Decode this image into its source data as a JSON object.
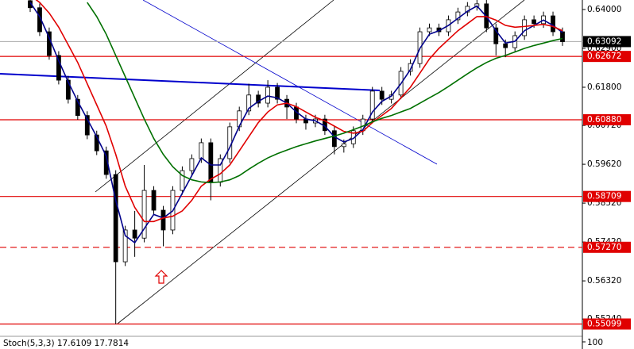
{
  "chart_data": {
    "type": "candlestick",
    "ylim": [
      0.54796,
      0.64269
    ],
    "yticks": [
      {
        "value": 0.64,
        "label": "0.64000"
      },
      {
        "value": 0.629,
        "label": "0.62900"
      },
      {
        "value": 0.618,
        "label": "0.61800"
      },
      {
        "value": 0.6072,
        "label": "0.60720"
      },
      {
        "value": 0.5962,
        "label": "0.59620"
      },
      {
        "value": 0.5852,
        "label": "0.58520"
      },
      {
        "value": 0.5742,
        "label": "0.57420"
      },
      {
        "value": 0.5632,
        "label": "0.56320"
      },
      {
        "value": 0.5524,
        "label": "0.55240"
      }
    ],
    "up_color": "#ffffff",
    "down_color": "#000000",
    "open": [
      0.6425,
      0.6405,
      0.6337,
      0.627,
      0.62,
      0.6146,
      0.61,
      0.6045,
      0.6,
      0.5933,
      0.5686,
      0.5776,
      0.5753,
      0.5888,
      0.5832,
      0.5776,
      0.5888,
      0.5944,
      0.5978,
      0.6023,
      0.5911,
      0.5978,
      0.6068,
      0.6113,
      0.6158,
      0.6135,
      0.618,
      0.6146,
      0.6124,
      0.609,
      0.6079,
      0.609,
      0.6057,
      0.6012,
      0.602,
      0.6057,
      0.609,
      0.6169,
      0.6146,
      0.6158,
      0.6225,
      0.6247,
      0.6337,
      0.6348,
      0.6337,
      0.6371,
      0.6393,
      0.6409,
      0.6416,
      0.6348,
      0.6303,
      0.6292,
      0.6326,
      0.6371,
      0.636,
      0.6382,
      0.6337
    ],
    "high": [
      0.6437,
      0.6417,
      0.6349,
      0.6282,
      0.6212,
      0.6158,
      0.6112,
      0.6057,
      0.6012,
      0.5945,
      0.5788,
      0.583,
      0.596,
      0.59,
      0.5844,
      0.59,
      0.5956,
      0.599,
      0.6035,
      0.6035,
      0.599,
      0.608,
      0.6125,
      0.619,
      0.617,
      0.62,
      0.6192,
      0.6158,
      0.6136,
      0.6102,
      0.6102,
      0.6102,
      0.6069,
      0.6032,
      0.6069,
      0.6102,
      0.6181,
      0.6181,
      0.617,
      0.6237,
      0.6259,
      0.6349,
      0.636,
      0.636,
      0.6383,
      0.6405,
      0.6421,
      0.6428,
      0.6428,
      0.636,
      0.6315,
      0.6338,
      0.6383,
      0.6383,
      0.6394,
      0.6394,
      0.6349
    ],
    "low": [
      0.6393,
      0.6325,
      0.6258,
      0.6188,
      0.6134,
      0.6088,
      0.6033,
      0.5988,
      0.5921,
      0.551,
      0.5674,
      0.57,
      0.5741,
      0.582,
      0.573,
      0.5764,
      0.5876,
      0.5932,
      0.5966,
      0.586,
      0.5899,
      0.5966,
      0.6056,
      0.6101,
      0.6123,
      0.6123,
      0.6134,
      0.609,
      0.6078,
      0.606,
      0.6067,
      0.6045,
      0.599,
      0.5995,
      0.6008,
      0.6045,
      0.6078,
      0.613,
      0.6134,
      0.6146,
      0.6213,
      0.6235,
      0.6325,
      0.6325,
      0.6325,
      0.6359,
      0.6381,
      0.6397,
      0.6336,
      0.627,
      0.6265,
      0.628,
      0.6314,
      0.6348,
      0.6348,
      0.6325,
      0.6297
    ],
    "close": [
      0.6405,
      0.6337,
      0.627,
      0.62,
      0.6146,
      0.61,
      0.6045,
      0.6,
      0.5933,
      0.5686,
      0.5776,
      0.5753,
      0.5888,
      0.5832,
      0.5776,
      0.5888,
      0.5944,
      0.5978,
      0.6023,
      0.5911,
      0.5978,
      0.6068,
      0.6113,
      0.6158,
      0.6135,
      0.618,
      0.6146,
      0.6124,
      0.609,
      0.6079,
      0.609,
      0.6057,
      0.6012,
      0.602,
      0.6057,
      0.609,
      0.6169,
      0.6146,
      0.6158,
      0.6225,
      0.6247,
      0.6337,
      0.6348,
      0.6337,
      0.6371,
      0.6393,
      0.6409,
      0.6416,
      0.6348,
      0.6303,
      0.6292,
      0.6326,
      0.6371,
      0.636,
      0.6382,
      0.6337,
      0.6309
    ],
    "lines": [
      {
        "color": "#00008b",
        "values": [
          0.642,
          0.638,
          0.632,
          0.6255,
          0.6195,
          0.614,
          0.609,
          0.604,
          0.5985,
          0.586,
          0.576,
          0.574,
          0.578,
          0.582,
          0.581,
          0.583,
          0.588,
          0.593,
          0.598,
          0.596,
          0.596,
          0.601,
          0.607,
          0.612,
          0.614,
          0.6155,
          0.615,
          0.6135,
          0.611,
          0.609,
          0.6085,
          0.607,
          0.604,
          0.6025,
          0.6035,
          0.606,
          0.611,
          0.614,
          0.6155,
          0.619,
          0.623,
          0.629,
          0.633,
          0.634,
          0.6355,
          0.6375,
          0.6395,
          0.641,
          0.638,
          0.634,
          0.6305,
          0.631,
          0.634,
          0.6355,
          0.637,
          0.6355,
          0.6335
        ]
      },
      {
        "color": "#e00000",
        "values": [
          0.644,
          0.642,
          0.639,
          0.635,
          0.63,
          0.625,
          0.619,
          0.613,
          0.607,
          0.599,
          0.59,
          0.584,
          0.58,
          0.58,
          0.581,
          0.5815,
          0.583,
          0.586,
          0.59,
          0.592,
          0.5935,
          0.596,
          0.6,
          0.604,
          0.608,
          0.611,
          0.613,
          0.6135,
          0.6125,
          0.611,
          0.6095,
          0.6085,
          0.607,
          0.6055,
          0.605,
          0.6055,
          0.608,
          0.61,
          0.612,
          0.615,
          0.618,
          0.622,
          0.626,
          0.629,
          0.6315,
          0.634,
          0.636,
          0.638,
          0.638,
          0.637,
          0.6355,
          0.635,
          0.6352,
          0.6355,
          0.6358,
          0.6352,
          0.634
        ]
      },
      {
        "color": "#007000",
        "values": [
          null,
          null,
          null,
          null,
          null,
          null,
          0.642,
          0.638,
          0.633,
          0.627,
          0.621,
          0.615,
          0.609,
          0.6035,
          0.599,
          0.5955,
          0.593,
          0.5918,
          0.5912,
          0.591,
          0.5912,
          0.5918,
          0.593,
          0.5948,
          0.5965,
          0.598,
          0.5992,
          0.6002,
          0.6012,
          0.602,
          0.6028,
          0.6035,
          0.6042,
          0.605,
          0.606,
          0.607,
          0.6082,
          0.6092,
          0.61,
          0.611,
          0.612,
          0.6135,
          0.615,
          0.6165,
          0.6182,
          0.62,
          0.6218,
          0.6235,
          0.625,
          0.6262,
          0.627,
          0.628,
          0.629,
          0.6298,
          0.6305,
          0.6312,
          0.6318
        ]
      }
    ],
    "levels": [
      {
        "value": 0.62672,
        "label": "0.62672",
        "color": "#e00000",
        "dashed": false
      },
      {
        "value": 0.6088,
        "label": "0.60880",
        "color": "#e00000",
        "dashed": false
      },
      {
        "value": 0.58709,
        "label": "0.58709",
        "color": "#e00000",
        "dashed": false
      },
      {
        "value": 0.5727,
        "label": "0.57270",
        "color": "#e00000",
        "dashed": true
      },
      {
        "value": 0.55099,
        "label": "0.55099",
        "color": "#e00000",
        "dashed": false
      }
    ],
    "last_price": {
      "value": 0.63092,
      "label": "0.63092"
    },
    "subpanel": {
      "title": "Stoch(5,3,3) 17.6109 17.7814",
      "yticks": [
        100
      ]
    }
  }
}
